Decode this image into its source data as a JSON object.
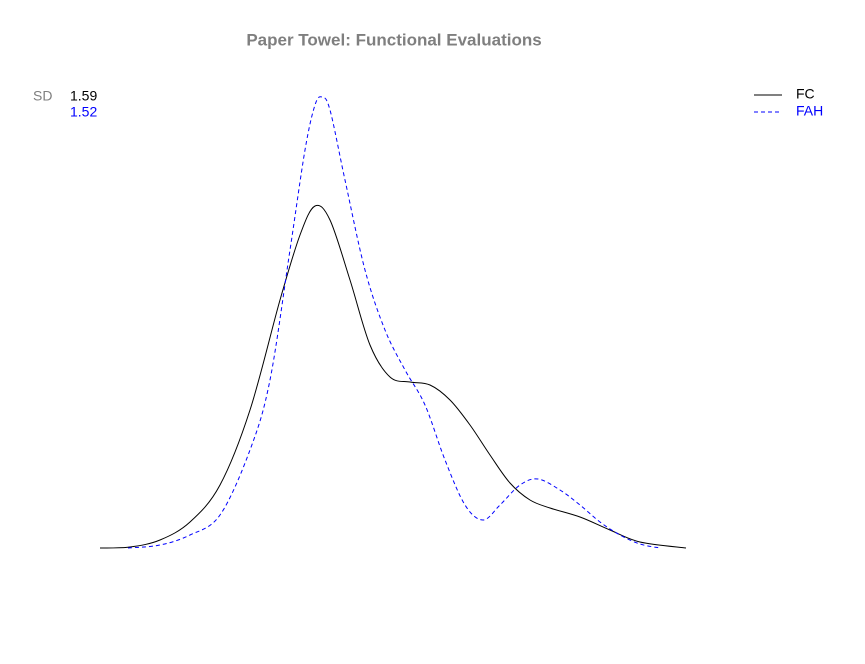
{
  "chart_data": {
    "type": "line",
    "title": "Paper Towel: Functional Evaluations",
    "sd_label": "SD",
    "xlim": [
      0,
      58.6
    ],
    "ylim": [
      0,
      45.1
    ],
    "legend": "top-right",
    "series": [
      {
        "name": "FC",
        "color": "#000000",
        "line_style": "solid",
        "sd": 1.59,
        "x": [
          0,
          3,
          6,
          9,
          12,
          15,
          18,
          20,
          21.5,
          23,
          25,
          27,
          29,
          31,
          33,
          35,
          37,
          39,
          41,
          43,
          45,
          48,
          51,
          54,
          58.6
        ],
        "values": [
          0,
          0.1,
          0.8,
          2.6,
          6.3,
          13.8,
          24.8,
          31.3,
          34.2,
          32.8,
          26.8,
          20.3,
          17.1,
          16.6,
          16.3,
          14.8,
          12.3,
          9.3,
          6.5,
          4.8,
          4.0,
          3.1,
          1.8,
          0.6,
          0
        ]
      },
      {
        "name": "FAH",
        "color": "#0000ff",
        "line_style": "dashed",
        "sd": 1.52,
        "x": [
          2.8,
          6,
          9,
          12,
          15,
          17,
          19,
          20.5,
          21.5,
          22.2,
          23,
          24.5,
          26.5,
          28.5,
          30.5,
          32.5,
          34.5,
          36.5,
          38.3,
          40,
          42,
          43.8,
          46,
          48,
          50,
          52,
          54,
          56
        ],
        "values": [
          0,
          0.3,
          1.3,
          3.3,
          9.8,
          16.8,
          29.8,
          39.8,
          44.3,
          45.1,
          43.8,
          36.8,
          27.8,
          21.8,
          17.8,
          14.3,
          8.8,
          4.3,
          2.8,
          4.3,
          6.3,
          6.9,
          5.8,
          4.3,
          2.6,
          1.3,
          0.4,
          0
        ]
      }
    ]
  }
}
